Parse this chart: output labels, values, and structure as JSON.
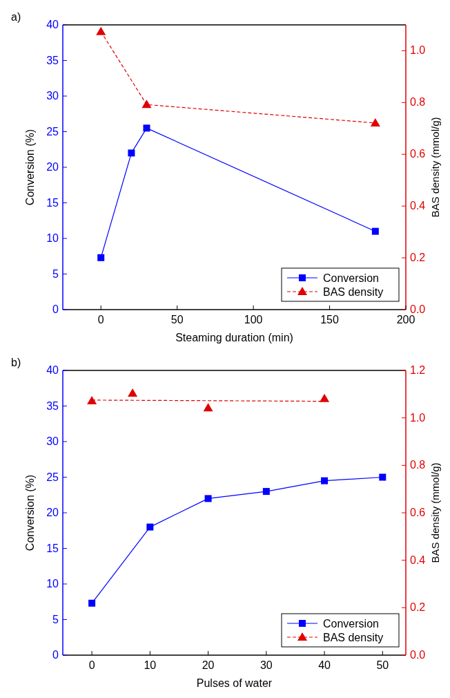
{
  "chart_data": [
    {
      "type": "line",
      "title": "a)",
      "xlabel": "Steaming duration (min)",
      "ylabel": "Conversion (%)",
      "y2label": "BAS density (mmol/g)",
      "xlim": [
        -25,
        200
      ],
      "xticks": [
        0,
        50,
        100,
        150,
        200
      ],
      "ylim": [
        0,
        40
      ],
      "yticks": [
        0,
        5,
        10,
        15,
        20,
        25,
        30,
        35,
        40
      ],
      "y2lim": [
        0,
        1.1
      ],
      "y2ticks": [
        {
          "value": 0,
          "label": "0.0"
        },
        {
          "value": 0.2,
          "label": "0.2"
        },
        {
          "value": 0.4,
          "label": "0.4"
        },
        {
          "value": 0.6,
          "label": "0.6"
        },
        {
          "value": 0.8,
          "label": "0.8"
        },
        {
          "value": 1,
          "label": "1.0"
        }
      ],
      "legend": "bottom right",
      "grid": false,
      "series": [
        {
          "name": "Conversion",
          "type": "line",
          "color": "#0000ff",
          "marker": "square",
          "line_style": "solid",
          "x": [
            0,
            20,
            30,
            180
          ],
          "values": [
            7.3,
            22,
            25.5,
            11
          ]
        },
        {
          "name": "BAS density",
          "type": "line",
          "axis": "y2",
          "color": "#e00000",
          "marker": "triangle",
          "line_style": "dashed",
          "x": [
            0,
            30,
            180
          ],
          "values": [
            1.074,
            0.792,
            0.721
          ]
        }
      ]
    },
    {
      "type": "line",
      "title": "b)",
      "xlabel": "Pulses of water",
      "ylabel": "Conversion (%)",
      "y2label": "BAS density (mmol/g)",
      "xlim": [
        -5,
        54
      ],
      "xticks": [
        0,
        10,
        20,
        30,
        40,
        50
      ],
      "ylim": [
        0,
        40
      ],
      "yticks": [
        0,
        5,
        10,
        15,
        20,
        25,
        30,
        35,
        40
      ],
      "y2lim": [
        0,
        1.2
      ],
      "y2ticks": [
        {
          "value": 0,
          "label": "0.0"
        },
        {
          "value": 0.2,
          "label": "0.2"
        },
        {
          "value": 0.4,
          "label": "0.4"
        },
        {
          "value": 0.6,
          "label": "0.6"
        },
        {
          "value": 0.8,
          "label": "0.8"
        },
        {
          "value": 1,
          "label": "1.0"
        },
        {
          "value": 1.2,
          "label": "1.2"
        }
      ],
      "legend": "bottom right",
      "grid": false,
      "series": [
        {
          "name": "Conversion",
          "type": "line",
          "color": "#0000ff",
          "marker": "square",
          "line_style": "solid",
          "x": [
            0,
            10,
            20,
            30,
            40,
            50
          ],
          "values": [
            7.3,
            18,
            22,
            23,
            24.5,
            25
          ]
        },
        {
          "name": "BAS density",
          "type": "scatter",
          "axis": "y2",
          "color": "#e00000",
          "marker": "triangle",
          "line_style": "dashed",
          "x": [
            0,
            7,
            20,
            40
          ],
          "values": [
            1.072,
            1.104,
            1.042,
            1.081
          ]
        },
        {
          "type": "line",
          "axis": "y2",
          "color": "#e00000",
          "marker": "none",
          "line_style": "dashed",
          "x": [
            0,
            40
          ],
          "values": [
            1.075,
            1.07
          ]
        }
      ]
    }
  ]
}
